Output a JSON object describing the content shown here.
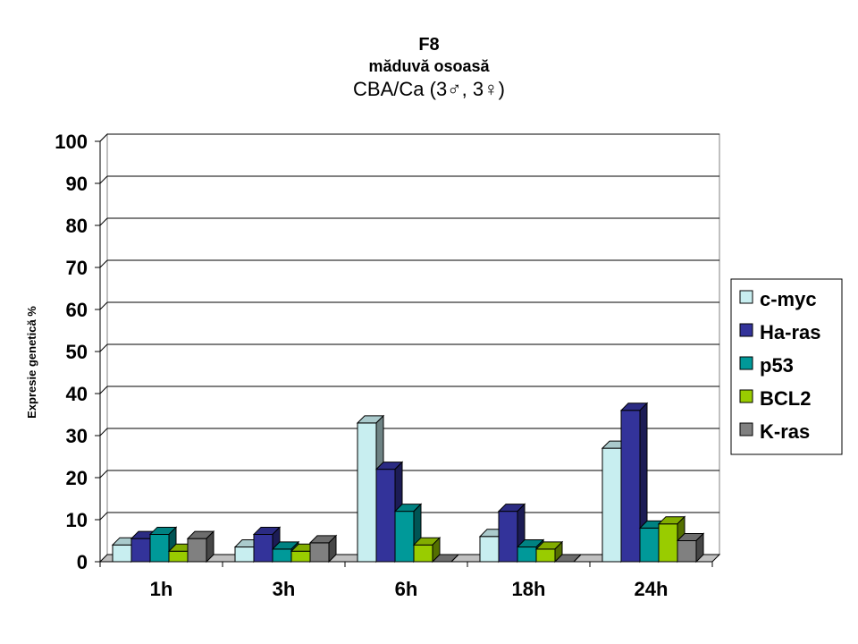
{
  "chart_data": {
    "type": "bar",
    "title": "F8",
    "subtitle": "măduvă osoasă",
    "subtitle2": "CBA/Ca (3♂, 3♀)",
    "ylabel": "Expresie genetică %",
    "xlabel": "",
    "ylim": [
      0,
      100
    ],
    "yticks": [
      "0",
      "10",
      "20",
      "30",
      "40",
      "50",
      "60",
      "70",
      "80",
      "90",
      "100"
    ],
    "categories": [
      "1h",
      "3h",
      "6h",
      "18h",
      "24h"
    ],
    "series": [
      {
        "name": "c-myc",
        "color": "#c8eef0",
        "values": [
          4,
          3.5,
          33,
          6,
          27
        ]
      },
      {
        "name": "Ha-ras",
        "color": "#33339a",
        "values": [
          5.5,
          6.5,
          22,
          12,
          36
        ]
      },
      {
        "name": "p53",
        "color": "#009999",
        "values": [
          6.5,
          3,
          12,
          3.5,
          8
        ]
      },
      {
        "name": "BCL2",
        "color": "#99cc00",
        "values": [
          2.5,
          2.5,
          4,
          3,
          9
        ]
      },
      {
        "name": "K-ras",
        "color": "#808080",
        "values": [
          5.5,
          4.5,
          0,
          0,
          5
        ]
      }
    ],
    "grid": true,
    "legend": "right",
    "style": "3d-bars"
  }
}
